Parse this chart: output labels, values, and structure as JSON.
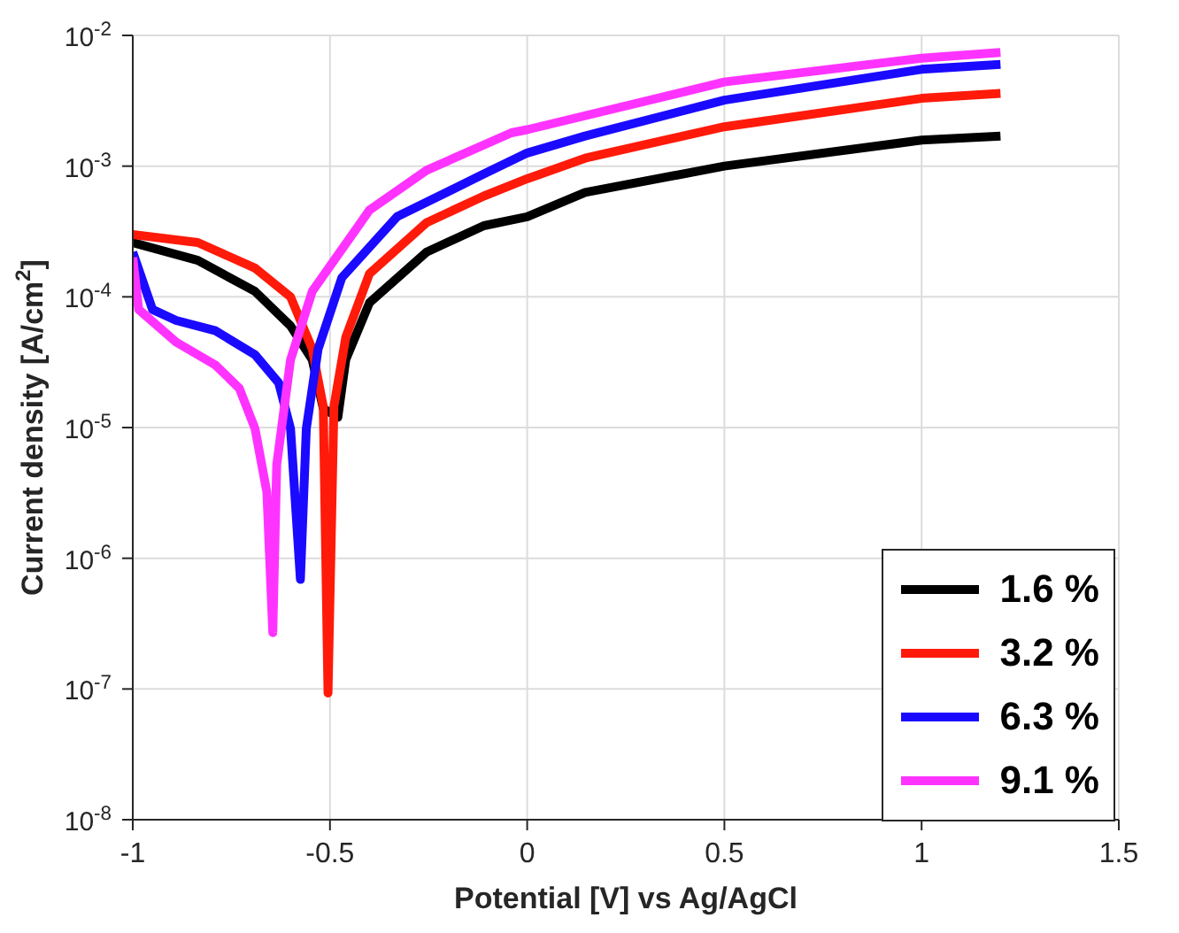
{
  "chart_data": {
    "type": "line",
    "xlabel": "Potential [V] vs Ag/AgCl",
    "ylabel": "Current density [A/cm$^{2}$]",
    "log": "y",
    "grid": true,
    "legend": "bottom right",
    "marker": "none",
    "line_style": "solid",
    "xlim": [
      -1,
      1.5
    ],
    "xticks": [
      -1,
      -0.5,
      0,
      0.5,
      1,
      1.5
    ],
    "ylim": [
      1e-08,
      0.01
    ],
    "yticks": [
      {
        "value": 1e-08,
        "label": "10$^{-8}$"
      },
      {
        "value": 1e-07,
        "label": "10$^{-7}$"
      },
      {
        "value": 1e-06,
        "label": "10$^{-6}$"
      },
      {
        "value": 1e-05,
        "label": "10$^{-5}$"
      },
      {
        "value": 0.0001,
        "label": "10$^{-4}$"
      },
      {
        "value": 0.001,
        "label": "10$^{-3}$"
      },
      {
        "value": 0.01,
        "label": "10$^{-2}$"
      }
    ],
    "series": [
      {
        "name": "1.6 %",
        "color": "#000000",
        "x": [
          -1,
          -0.835,
          -0.69,
          -0.6,
          -0.545,
          -0.517,
          -0.48,
          -0.46,
          -0.4,
          -0.255,
          -0.11,
          0,
          0.147,
          0.5,
          1,
          1.2
        ],
        "values": [
          0.00026,
          0.00019,
          0.00011,
          6e-05,
          3.3e-05,
          1.4e-05,
          1.2e-05,
          3.3e-05,
          9e-05,
          0.00022,
          0.00035,
          0.00041,
          0.00063,
          0.001,
          0.00158,
          0.0017
        ]
      },
      {
        "name": "3.2 %",
        "color": "#ff1a0a",
        "x": [
          -1,
          -0.835,
          -0.69,
          -0.6,
          -0.545,
          -0.517,
          -0.505,
          -0.49,
          -0.46,
          -0.4,
          -0.255,
          -0.11,
          0,
          0.147,
          0.5,
          1,
          1.2
        ],
        "values": [
          0.0003,
          0.00026,
          0.000166,
          0.0001,
          4e-05,
          1.45e-05,
          9.3e-08,
          1.45e-05,
          4.9e-05,
          0.00015,
          0.00037,
          0.00059,
          0.0008,
          0.00115,
          0.002,
          0.0033,
          0.0036
        ]
      },
      {
        "name": "6.3 %",
        "color": "#1a0aff",
        "x": [
          -1,
          -0.95,
          -0.89,
          -0.79,
          -0.69,
          -0.63,
          -0.6,
          -0.575,
          -0.56,
          -0.53,
          -0.47,
          -0.33,
          -0.11,
          0,
          0.147,
          0.5,
          1,
          1.2
        ],
        "values": [
          0.00022,
          8e-05,
          6.6e-05,
          5.5e-05,
          3.6e-05,
          2.2e-05,
          9.8e-06,
          6.9e-07,
          9.8e-06,
          4e-05,
          0.00014,
          0.00041,
          0.00087,
          0.00126,
          0.0017,
          0.0032,
          0.0055,
          0.006
        ]
      },
      {
        "name": "9.1 %",
        "color": "#ff33ff",
        "x": [
          -1,
          -0.985,
          -0.89,
          -0.79,
          -0.73,
          -0.69,
          -0.66,
          -0.645,
          -0.635,
          -0.6,
          -0.545,
          -0.4,
          -0.255,
          -0.04,
          0,
          0.5,
          1,
          1.2
        ],
        "values": [
          0.0002,
          8e-05,
          4.5e-05,
          3e-05,
          2e-05,
          9.8e-06,
          3.2e-06,
          2.7e-07,
          5.2e-06,
          3.3e-05,
          0.00011,
          0.00046,
          0.00093,
          0.0018,
          0.0019,
          0.0044,
          0.0067,
          0.0074
        ]
      }
    ]
  }
}
